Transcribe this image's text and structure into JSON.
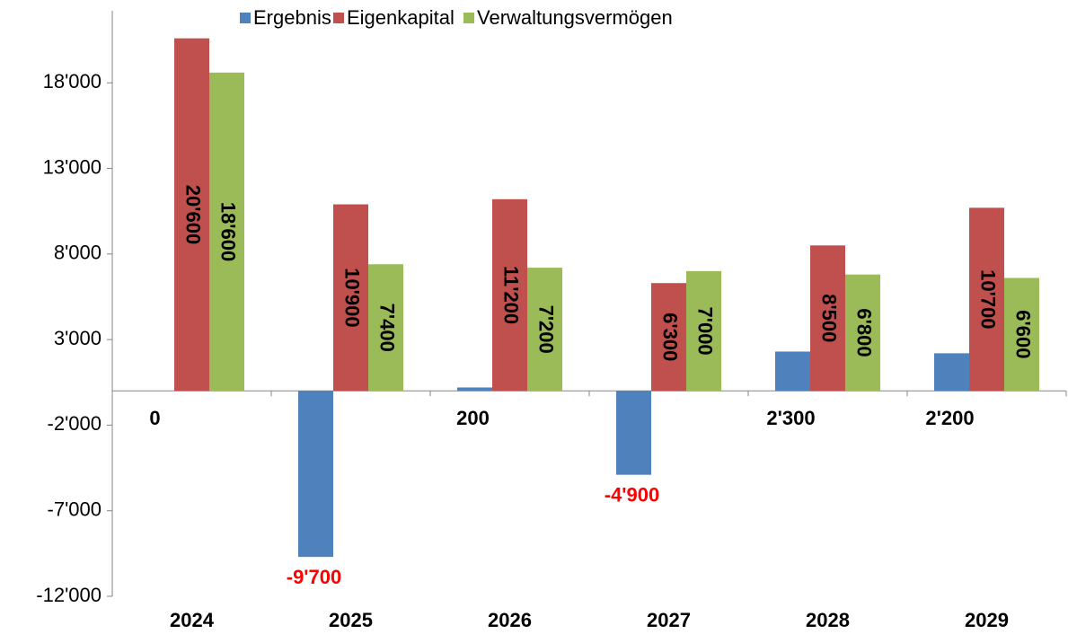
{
  "chart_data": {
    "type": "bar",
    "categories": [
      "2024",
      "2025",
      "2026",
      "2027",
      "2028",
      "2029"
    ],
    "series": [
      {
        "name": "Ergebnis",
        "color": "#4f81bd",
        "values": [
          0,
          -9700,
          200,
          -4900,
          2300,
          2200
        ],
        "value_labels": [
          "0",
          "-9'700",
          "200",
          "-4'900",
          "2'300",
          "2'200"
        ]
      },
      {
        "name": "Eigenkapital",
        "color": "#c0504d",
        "values": [
          20600,
          10900,
          11200,
          6300,
          8500,
          10700
        ],
        "value_labels": [
          "20'600",
          "10'900",
          "11'200",
          "6'300",
          "8'500",
          "10'700"
        ]
      },
      {
        "name": "Verwaltungsvermögen",
        "color": "#9bbb59",
        "values": [
          18600,
          7400,
          7200,
          7000,
          6800,
          6600
        ],
        "value_labels": [
          "18'600",
          "7'400",
          "7'200",
          "7'000",
          "6'800",
          "6'600"
        ]
      }
    ],
    "ylim": [
      -12000,
      22000
    ],
    "yticks": [
      {
        "value": -12000,
        "label": "-12'000"
      },
      {
        "value": -7000,
        "label": "-7'000"
      },
      {
        "value": -2000,
        "label": "-2'000"
      },
      {
        "value": 3000,
        "label": "3'000"
      },
      {
        "value": 8000,
        "label": "8'000"
      },
      {
        "value": 13000,
        "label": "13'000"
      },
      {
        "value": 18000,
        "label": "18'000"
      }
    ],
    "negative_label_color": "#ff0000",
    "legend": "top"
  }
}
